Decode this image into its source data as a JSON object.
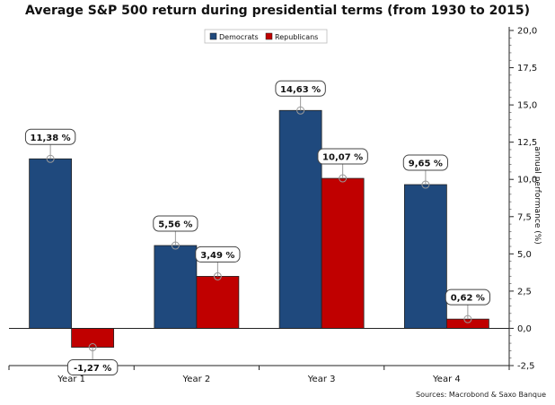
{
  "chart_data": {
    "type": "bar",
    "title": "Average S&P 500 return during presidential terms (from 1930 to 2015)",
    "ylabel": "annual performance (%)",
    "categories": [
      "Year 1",
      "Year 2",
      "Year 3",
      "Year 4"
    ],
    "series": [
      {
        "name": "Democrats",
        "values": [
          11.38,
          5.56,
          14.63,
          9.65
        ],
        "labels": [
          "11,38 %",
          "5,56 %",
          "14,63 %",
          "9,65 %"
        ],
        "color": "#1F497D"
      },
      {
        "name": "Republicans",
        "values": [
          -1.27,
          3.49,
          10.07,
          0.62
        ],
        "labels": [
          "-1,27 %",
          "3,49 %",
          "10,07 %",
          "0,62 %"
        ],
        "color": "#C00000"
      }
    ],
    "ylim": [
      -2.5,
      20.0
    ],
    "yticks": [
      -2.5,
      0.0,
      2.5,
      5.0,
      7.5,
      10.0,
      12.5,
      15.0,
      17.5,
      20.0
    ],
    "ytick_labels": [
      "-2,5",
      "0,0",
      "2,5",
      "5,0",
      "7,5",
      "10,0",
      "12,5",
      "15,0",
      "17,5",
      "20,0"
    ],
    "y_axis_side": "right",
    "legend_position": "top-center",
    "grid": false,
    "source": "Sources: Macrobond & Saxo Banque"
  }
}
